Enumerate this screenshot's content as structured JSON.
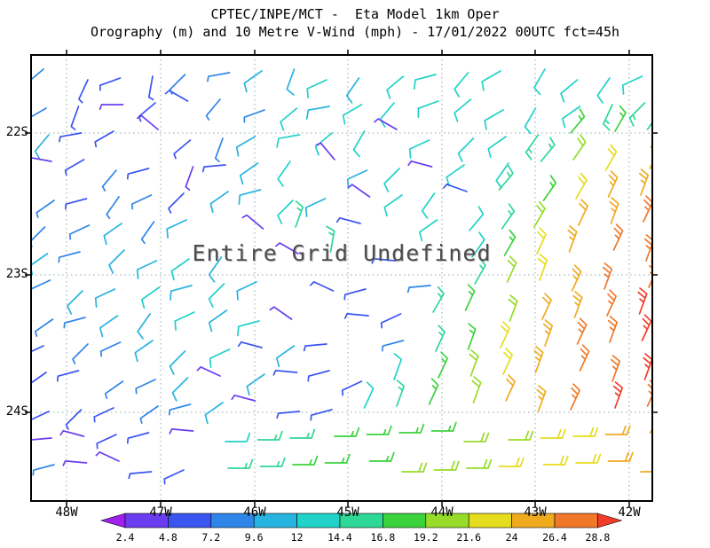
{
  "title": {
    "line1": "CPTEC/INPE/MCT -  Eta Model 1km Oper",
    "line2": "Orography (m) and 10 Metre V-Wind (mph) - 17/01/2022 00UTC fct=45h"
  },
  "annotation": "Entire Grid Undefined",
  "axes": {
    "lat_labels": [
      "22S",
      "23S",
      "24S"
    ],
    "lon_labels": [
      "48W",
      "47W",
      "46W",
      "45W",
      "44W",
      "43W",
      "42W"
    ]
  },
  "colorbar": {
    "labels": [
      "2.4",
      "4.8",
      "7.2",
      "9.6",
      "12",
      "14.4",
      "16.8",
      "19.2",
      "21.6",
      "24",
      "26.4",
      "28.8"
    ]
  },
  "chart_data": {
    "type": "wind_barbs",
    "title": "CPTEC/INPE/MCT - Eta Model 1km Oper",
    "subtitle": "Orography (m) and 10 Metre V-Wind (mph) - 17/01/2022 00UTC fct=45h",
    "units": "mph",
    "lon_range": [
      "48W",
      "42W"
    ],
    "lat_range": [
      "22S",
      "24S"
    ],
    "annotation": "Entire Grid Undefined",
    "speed_thresholds": [
      2.4,
      4.8,
      7.2,
      9.6,
      12,
      14.4,
      16.8,
      19.2,
      21.6,
      24,
      26.4,
      28.8
    ],
    "palette": [
      "#a020f0",
      "#6a3df0",
      "#3a55f0",
      "#2f86e8",
      "#28b4e0",
      "#20d2c8",
      "#2ed896",
      "#3cd23c",
      "#96dc28",
      "#e6dc1e",
      "#f0aa1e",
      "#f07828",
      "#f03c28"
    ],
    "barbs": {
      "cols": 18,
      "rows": 14,
      "cells": [
        [
          [
            8,
            230
          ],
          [
            7,
            205
          ],
          [
            6,
            250
          ],
          [
            7,
            190
          ],
          [
            9,
            225
          ],
          [
            8,
            260
          ],
          [
            10,
            235
          ],
          [
            11,
            200
          ],
          [
            12,
            245
          ],
          [
            11,
            215
          ],
          [
            12,
            230
          ],
          [
            13,
            255
          ],
          [
            12,
            220
          ],
          [
            13,
            240
          ],
          [
            12,
            210
          ],
          [
            14,
            230
          ],
          [
            13,
            215
          ],
          [
            14,
            245
          ]
        ],
        [
          [
            9,
            240
          ],
          [
            6,
            200
          ],
          [
            4,
            270
          ],
          [
            7,
            230
          ],
          [
            5,
            300
          ],
          [
            8,
            220
          ],
          [
            9,
            250
          ],
          [
            12,
            230
          ],
          [
            11,
            260
          ],
          [
            12,
            240
          ],
          [
            13,
            220
          ],
          [
            12,
            250
          ],
          [
            13,
            230
          ],
          [
            14,
            240
          ],
          [
            13,
            210
          ],
          [
            12,
            235
          ],
          [
            16,
            205
          ],
          [
            15,
            225
          ]
        ],
        [
          [
            10,
            220
          ],
          [
            5,
            260
          ],
          [
            7,
            240
          ],
          [
            4,
            310
          ],
          [
            6,
            230
          ],
          [
            9,
            200
          ],
          [
            11,
            240
          ],
          [
            12,
            260
          ],
          [
            13,
            230
          ],
          [
            12,
            210
          ],
          [
            4,
            300
          ],
          [
            12,
            245
          ],
          [
            13,
            225
          ],
          [
            14,
            235
          ],
          [
            15,
            215
          ],
          [
            18,
            40
          ],
          [
            17,
            30
          ],
          [
            16,
            35
          ]
        ],
        [
          [
            3,
            280
          ],
          [
            6,
            240
          ],
          [
            8,
            220
          ],
          [
            5,
            255
          ],
          [
            4,
            200
          ],
          [
            7,
            265
          ],
          [
            10,
            235
          ],
          [
            12,
            215
          ],
          [
            3,
            320
          ],
          [
            11,
            245
          ],
          [
            12,
            225
          ],
          [
            4,
            285
          ],
          [
            13,
            235
          ],
          [
            14,
            215
          ],
          [
            16,
            40
          ],
          [
            20,
            35
          ],
          [
            22,
            30
          ],
          [
            24,
            25
          ]
        ],
        [
          [
            8,
            235
          ],
          [
            7,
            255
          ],
          [
            9,
            215
          ],
          [
            8,
            245
          ],
          [
            6,
            225
          ],
          [
            10,
            235
          ],
          [
            11,
            255
          ],
          [
            12,
            225
          ],
          [
            11,
            245
          ],
          [
            3,
            305
          ],
          [
            12,
            235
          ],
          [
            13,
            215
          ],
          [
            5,
            290
          ],
          [
            15,
            40
          ],
          [
            18,
            35
          ],
          [
            22,
            30
          ],
          [
            25,
            25
          ],
          [
            26,
            20
          ]
        ],
        [
          [
            9,
            225
          ],
          [
            8,
            245
          ],
          [
            10,
            235
          ],
          [
            9,
            215
          ],
          [
            11,
            245
          ],
          null,
          [
            4,
            310
          ],
          [
            16,
            20
          ],
          null,
          [
            5,
            285
          ],
          null,
          [
            12,
            235
          ],
          [
            13,
            40
          ],
          [
            16,
            35
          ],
          [
            20,
            30
          ],
          [
            24,
            25
          ],
          [
            26,
            20
          ],
          [
            27,
            25
          ]
        ],
        [
          [
            10,
            235
          ],
          [
            9,
            255
          ],
          [
            11,
            225
          ],
          [
            10,
            245
          ],
          [
            12,
            235
          ],
          [
            11,
            215
          ],
          null,
          [
            4,
            300
          ],
          [
            16,
            10
          ],
          null,
          [
            6,
            275
          ],
          null,
          [
            14,
            35
          ],
          [
            18,
            30
          ],
          [
            22,
            25
          ],
          [
            25,
            20
          ],
          [
            27,
            25
          ],
          [
            28,
            20
          ]
        ],
        [
          [
            9,
            245
          ],
          [
            10,
            225
          ],
          [
            11,
            245
          ],
          [
            12,
            235
          ],
          [
            10,
            255
          ],
          [
            12,
            225
          ],
          [
            11,
            245
          ],
          null,
          [
            5,
            295
          ],
          [
            6,
            255
          ],
          null,
          [
            8,
            265
          ],
          [
            16,
            30
          ],
          [
            20,
            25
          ],
          [
            23,
            20
          ],
          [
            26,
            25
          ],
          [
            27,
            20
          ],
          [
            28,
            25
          ]
        ],
        [
          [
            8,
            235
          ],
          [
            9,
            255
          ],
          [
            10,
            235
          ],
          [
            11,
            215
          ],
          [
            12,
            245
          ],
          [
            11,
            235
          ],
          [
            12,
            255
          ],
          [
            4,
            305
          ],
          null,
          [
            5,
            275
          ],
          [
            7,
            245
          ],
          [
            15,
            30
          ],
          [
            18,
            25
          ],
          [
            21,
            20
          ],
          [
            24,
            25
          ],
          [
            26,
            20
          ],
          [
            28,
            25
          ],
          [
            29,
            20
          ]
        ],
        [
          [
            7,
            245
          ],
          [
            8,
            225
          ],
          [
            9,
            245
          ],
          [
            10,
            235
          ],
          [
            11,
            225
          ],
          [
            12,
            245
          ],
          [
            5,
            285
          ],
          [
            11,
            235
          ],
          [
            6,
            265
          ],
          null,
          [
            8,
            255
          ],
          [
            16,
            25
          ],
          [
            19,
            20
          ],
          [
            22,
            25
          ],
          [
            25,
            20
          ],
          [
            27,
            25
          ],
          [
            28,
            20
          ],
          [
            29,
            25
          ]
        ],
        [
          [
            6,
            235
          ],
          [
            7,
            255
          ],
          [
            8,
            235
          ],
          [
            9,
            245
          ],
          [
            10,
            225
          ],
          [
            4,
            295
          ],
          [
            11,
            235
          ],
          [
            5,
            275
          ],
          [
            7,
            255
          ],
          [
            6,
            245
          ],
          [
            14,
            20
          ],
          [
            17,
            25
          ],
          [
            20,
            20
          ],
          [
            23,
            25
          ],
          [
            26,
            20
          ],
          [
            27,
            25
          ],
          [
            28,
            20
          ],
          [
            29,
            20
          ]
        ],
        [
          [
            5,
            245
          ],
          [
            6,
            225
          ],
          [
            7,
            245
          ],
          [
            8,
            235
          ],
          [
            9,
            255
          ],
          [
            10,
            235
          ],
          [
            4,
            285
          ],
          [
            6,
            265
          ],
          [
            5,
            255
          ],
          [
            12,
            25
          ],
          [
            15,
            20
          ],
          [
            18,
            25
          ],
          [
            21,
            20
          ],
          [
            24,
            25
          ],
          [
            26,
            20
          ],
          [
            28,
            25
          ],
          [
            29,
            20
          ],
          [
            28,
            25
          ]
        ],
        [
          [
            4,
            265
          ],
          [
            3,
            285
          ],
          [
            5,
            245
          ],
          [
            6,
            255
          ],
          [
            4,
            275
          ],
          [
            14,
            90
          ],
          [
            15,
            90
          ],
          [
            16,
            90
          ],
          [
            17,
            90
          ],
          [
            18,
            90
          ],
          [
            18,
            90
          ],
          [
            19,
            90
          ],
          [
            20,
            90
          ],
          [
            21,
            90
          ],
          [
            22,
            90
          ],
          [
            23,
            90
          ],
          [
            24,
            90
          ],
          [
            25,
            35
          ]
        ],
        [
          [
            8,
            255
          ],
          [
            4,
            275
          ],
          [
            3,
            295
          ],
          [
            5,
            265
          ],
          [
            6,
            245
          ],
          [
            15,
            90
          ],
          [
            16,
            90
          ],
          [
            17,
            90
          ],
          [
            18,
            90
          ],
          [
            19,
            90
          ],
          [
            20,
            90
          ],
          [
            20,
            90
          ],
          [
            21,
            90
          ],
          [
            22,
            90
          ],
          [
            22,
            90
          ],
          [
            23,
            90
          ],
          [
            24,
            90
          ],
          [
            24,
            90
          ]
        ]
      ]
    }
  }
}
